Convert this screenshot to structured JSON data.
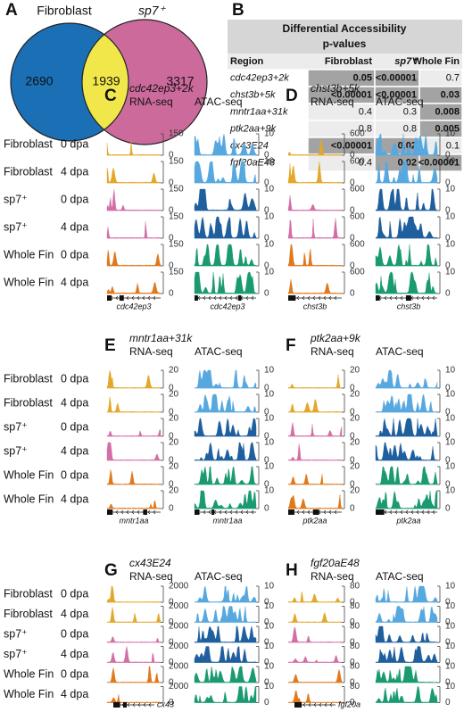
{
  "venn": {
    "letter": "A",
    "left": {
      "name": "Fibroblast",
      "color": "#1a6fb5",
      "count": 2690
    },
    "right": {
      "name": "sp7⁺",
      "color": "#cc6a9c",
      "count": 3317
    },
    "overlap": {
      "color": "#f2e74a",
      "count": 1939
    }
  },
  "table": {
    "letter": "B",
    "title": "Differential Accessibility",
    "subtitle": "p-values",
    "columns": [
      "Region",
      "Fibroblast",
      "sp7⁺",
      "Whole Fin"
    ],
    "rows": [
      [
        "cdc42ep3+2k",
        0.05,
        "<0.00001",
        0.7
      ],
      [
        "chst3b+5k",
        "<0.00001",
        "<0.00001",
        0.03
      ],
      [
        "mntr1aa+31k",
        0.4,
        0.3,
        0.008
      ],
      [
        "ptk2aa+9k",
        0.8,
        0.8,
        0.005
      ],
      [
        "cx43E24",
        "<0.00001",
        0.02,
        0.1
      ],
      [
        "fgf20aE48",
        0.4,
        0.02,
        "<0.00001"
      ]
    ],
    "dark_color": "#a3a3a3",
    "light_color": "#ececec",
    "header_color": "#d6d6d6"
  },
  "row_labels": [
    [
      "Fibroblast",
      "0 dpa"
    ],
    [
      "Fibroblast",
      "4 dpa"
    ],
    [
      "sp7⁺",
      "0 dpa"
    ],
    [
      "sp7⁺",
      "4 dpa"
    ],
    [
      "Whole Fin",
      "0 dpa"
    ],
    [
      "Whole Fin",
      "4 dpa"
    ]
  ],
  "rna_colors": [
    "#e3a72a",
    "#e3a72a",
    "#d36ea6",
    "#d36ea6",
    "#e0781c",
    "#e0781c"
  ],
  "atac_colors": [
    "#58a8e0",
    "#58a8e0",
    "#1f5f9e",
    "#1f5f9e",
    "#1b9a72",
    "#1b9a72"
  ],
  "panels": [
    {
      "letter": "C",
      "title": "cdc42ep3+2k",
      "rna_label": "RNA-seq",
      "atac_label": "ATAC-seq",
      "rna_ylim": [
        0,
        150
      ],
      "rna_yticks": [
        0,
        150
      ],
      "atac_ylim": [
        0,
        10
      ],
      "atac_yticks": [
        0,
        10
      ],
      "rna_gene": "cdc42ep3",
      "atac_gene": "cdc42ep3"
    },
    {
      "letter": "D",
      "title": "chst3b+5k",
      "rna_label": "RNA-seq",
      "atac_label": "ATAC-seq",
      "rna_ylim": [
        0,
        600
      ],
      "rna_yticks": [
        0,
        600
      ],
      "atac_ylim": [
        0,
        10
      ],
      "atac_yticks": [
        0,
        10
      ],
      "rna_gene": "chst3b",
      "atac_gene": "chst3b"
    },
    {
      "letter": "E",
      "title": "mntr1aa+31k",
      "rna_label": "RNA-seq",
      "atac_label": "ATAC-seq",
      "rna_ylim": [
        0,
        20
      ],
      "rna_yticks": [
        0,
        20
      ],
      "atac_ylim": [
        0,
        10
      ],
      "atac_yticks": [
        0,
        10
      ],
      "rna_gene": "mntr1aa",
      "atac_gene": "mntr1aa"
    },
    {
      "letter": "F",
      "title": "ptk2aa+9k",
      "rna_label": "RNA-seq",
      "atac_label": "ATAC-seq",
      "rna_ylim": [
        0,
        20
      ],
      "rna_yticks": [
        0,
        20
      ],
      "atac_ylim": [
        0,
        10
      ],
      "atac_yticks": [
        0,
        10
      ],
      "rna_gene": "ptk2aa",
      "atac_gene": "ptk2aa"
    },
    {
      "letter": "G",
      "title": "cx43E24",
      "rna_label": "RNA-seq",
      "atac_label": "ATAC-seq",
      "rna_ylim": [
        0,
        2000
      ],
      "rna_yticks": [
        0,
        2000
      ],
      "atac_ylim": [
        0,
        10
      ],
      "atac_yticks": [
        0,
        10
      ],
      "rna_gene": "cx43"
    },
    {
      "letter": "H",
      "title": "fgf20aE48",
      "rna_label": "RNA-seq",
      "atac_label": "ATAC-seq",
      "rna_ylim": [
        0,
        80
      ],
      "rna_yticks": [
        0,
        80
      ],
      "atac_ylim": [
        0,
        10
      ],
      "atac_yticks": [
        0,
        10
      ],
      "rna_gene": "fgf20a"
    }
  ]
}
